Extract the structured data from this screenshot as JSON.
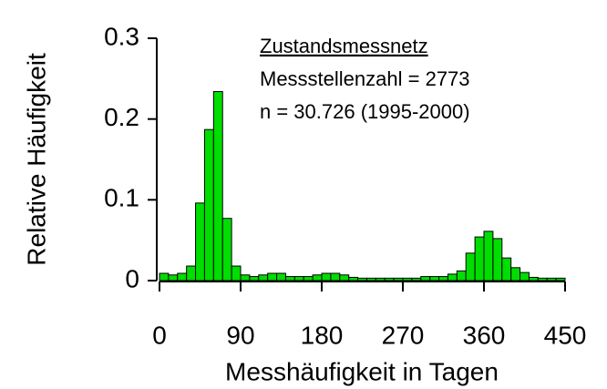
{
  "chart_data": {
    "type": "histogram",
    "xlabel": "Messhäufigkeit in Tagen",
    "ylabel": "Relative Häufigkeit",
    "annotations": [
      "Zustandsmessnetz",
      "Messstellenzahl = 2773",
      "n = 30.726 (1995-2000)"
    ],
    "bins": [
      0,
      10,
      20,
      30,
      40,
      50,
      60,
      70,
      80,
      90,
      100,
      110,
      120,
      130,
      140,
      150,
      160,
      170,
      180,
      190,
      200,
      210,
      220,
      230,
      240,
      250,
      260,
      270,
      280,
      290,
      300,
      310,
      320,
      330,
      340,
      350,
      360,
      370,
      380,
      390,
      400,
      410,
      420,
      430,
      440,
      450
    ],
    "values": [
      0.009,
      0.007,
      0.009,
      0.018,
      0.096,
      0.187,
      0.234,
      0.077,
      0.018,
      0.007,
      0.005,
      0.007,
      0.009,
      0.009,
      0.005,
      0.005,
      0.005,
      0.007,
      0.009,
      0.009,
      0.007,
      0.004,
      0.003,
      0.003,
      0.003,
      0.003,
      0.003,
      0.003,
      0.003,
      0.005,
      0.005,
      0.005,
      0.008,
      0.012,
      0.034,
      0.054,
      0.061,
      0.052,
      0.028,
      0.016,
      0.01,
      0.004,
      0.003,
      0.003,
      0.003
    ],
    "color": "#00dd00",
    "xlim": [
      0,
      450
    ],
    "xticks": [
      0,
      90,
      180,
      270,
      360,
      450
    ],
    "ylim": [
      0,
      0.3
    ],
    "yticks": [
      0,
      0.1,
      0.2,
      0.3
    ]
  }
}
